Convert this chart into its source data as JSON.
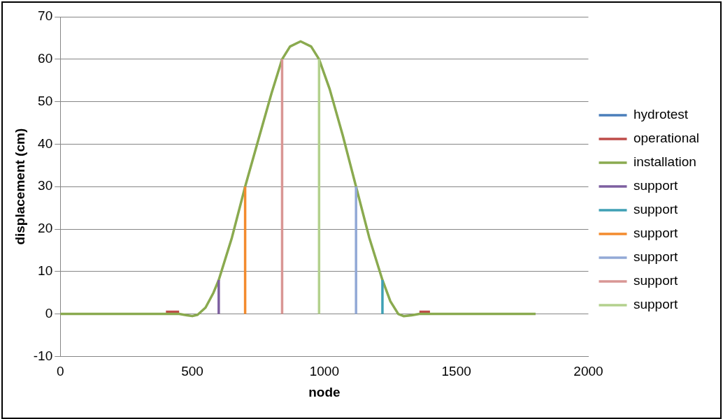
{
  "chart_data": {
    "type": "line",
    "xlabel": "node",
    "ylabel": "displacement (cm)",
    "x": [
      0,
      100,
      200,
      300,
      400,
      450,
      480,
      500,
      520,
      550,
      580,
      600,
      650,
      700,
      750,
      800,
      840,
      870,
      910,
      950,
      980,
      1020,
      1070,
      1120,
      1170,
      1220,
      1250,
      1280,
      1300,
      1330,
      1360,
      1400,
      1500,
      1600,
      1700,
      1800
    ],
    "series": [
      {
        "name": "hydrotest",
        "color": "#4a7ebb",
        "values": [
          null,
          null,
          null,
          null,
          null,
          null,
          null,
          null,
          null,
          null,
          null,
          null,
          null,
          null,
          null,
          null,
          null,
          null,
          null,
          null,
          null,
          null,
          null,
          null,
          null,
          null,
          null,
          null,
          null,
          null,
          null,
          null,
          null,
          null,
          null,
          null
        ]
      },
      {
        "name": "operational",
        "color": "#be4b48",
        "values": [
          null,
          null,
          null,
          null,
          0.5,
          0.5,
          null,
          null,
          null,
          null,
          null,
          null,
          null,
          null,
          null,
          null,
          null,
          null,
          null,
          null,
          null,
          null,
          null,
          null,
          null,
          null,
          null,
          null,
          null,
          null,
          0.5,
          0.5,
          null,
          null,
          null,
          null
        ]
      },
      {
        "name": "installation",
        "color": "#8aaa4f",
        "values": [
          0,
          0,
          0,
          0,
          0,
          0,
          -0.3,
          -0.5,
          -0.2,
          1.5,
          5,
          8,
          18,
          30,
          41,
          52,
          60,
          63,
          64.2,
          63,
          60,
          53,
          42,
          30,
          18,
          8,
          3,
          0,
          -0.5,
          -0.3,
          0,
          0,
          0,
          0,
          0,
          0
        ]
      },
      {
        "name": "support",
        "color": "#7d5fa0",
        "x": [
          600,
          600
        ],
        "values": [
          0,
          8
        ]
      },
      {
        "name": "support",
        "color": "#3fa0b5",
        "x": [
          1220,
          1220
        ],
        "values": [
          0,
          8
        ]
      },
      {
        "name": "support",
        "color": "#f38b2e",
        "x": [
          700,
          700
        ],
        "values": [
          0,
          30
        ]
      },
      {
        "name": "support",
        "color": "#92a9d6",
        "x": [
          1120,
          1120
        ],
        "values": [
          0,
          30
        ]
      },
      {
        "name": "support",
        "color": "#d99694",
        "x": [
          840,
          840
        ],
        "values": [
          0,
          60
        ]
      },
      {
        "name": "support",
        "color": "#b3d18d",
        "x": [
          980,
          980
        ],
        "values": [
          0,
          60
        ]
      }
    ],
    "xlim": [
      0,
      2000
    ],
    "xticks": [
      0,
      500,
      1000,
      1500,
      2000
    ],
    "ylim": [
      -10,
      70
    ],
    "yticks": [
      -10,
      0,
      10,
      20,
      30,
      40,
      50,
      60,
      70
    ],
    "grid": "y",
    "legend": "right",
    "marker": "none",
    "line_style": "solid"
  }
}
